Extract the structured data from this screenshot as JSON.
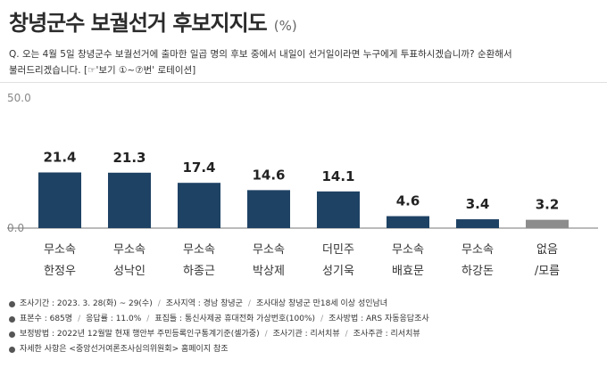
{
  "header": {
    "title": "창녕군수 보궐선거 후보지지도",
    "unit": "(%)"
  },
  "question": {
    "line1": "Q. 오는 4월 5일 창녕군수 보궐선거에 출마한 일곱 명의 후보 중에서 내일이 선거일이라면 누구에게 투표하시겠습니까? 순환해서",
    "line2": "불러드리겠습니다. [☞'보기 ①~⑦번' 로테이션]"
  },
  "chart_data": {
    "type": "bar",
    "categories": [
      [
        "무소속",
        "한정우"
      ],
      [
        "무소속",
        "성낙인"
      ],
      [
        "무소속",
        "하종근"
      ],
      [
        "무소속",
        "박상제"
      ],
      [
        "더민주",
        "성기욱"
      ],
      [
        "무소속",
        "배효문"
      ],
      [
        "무소속",
        "하강돈"
      ],
      [
        "없음",
        "/모름"
      ]
    ],
    "values": [
      21.4,
      21.3,
      17.4,
      14.6,
      14.1,
      4.6,
      3.4,
      3.2
    ],
    "value_labels": [
      "21.4",
      "21.3",
      "17.4",
      "14.6",
      "14.1",
      "4.6",
      "3.4",
      "3.2"
    ],
    "ylim": [
      0,
      50
    ],
    "yticks": [
      "0.0",
      "50.0"
    ],
    "colors": {
      "bar": "#1e4264",
      "other": "#8c8c8c",
      "baseline": "#777777"
    },
    "grid": false,
    "legend": "none"
  },
  "footnotes": [
    [
      "조사기간 : 2023. 3. 28(화) ~ 29(수)",
      "조사지역 : 경남 창녕군",
      "조사대상 창녕군 만18세 이상 성인남녀"
    ],
    [
      "표본수 : 685명",
      "응답률 : 11.0%",
      "표집틀 : 통신사제공 휴대전화 가상번호(100%)",
      "조사방법 : ARS 자동응답조사"
    ],
    [
      "보정방법 : 2022년 12월말 현재 행안부 주민등록인구통계기준(셀가중)",
      "조사기관 : 리서치뷰",
      "조사주관 : 리서치뷰"
    ],
    [
      "자세한 사항은 <중앙선거여론조사심의위원회> 홈페이지 참조"
    ]
  ]
}
